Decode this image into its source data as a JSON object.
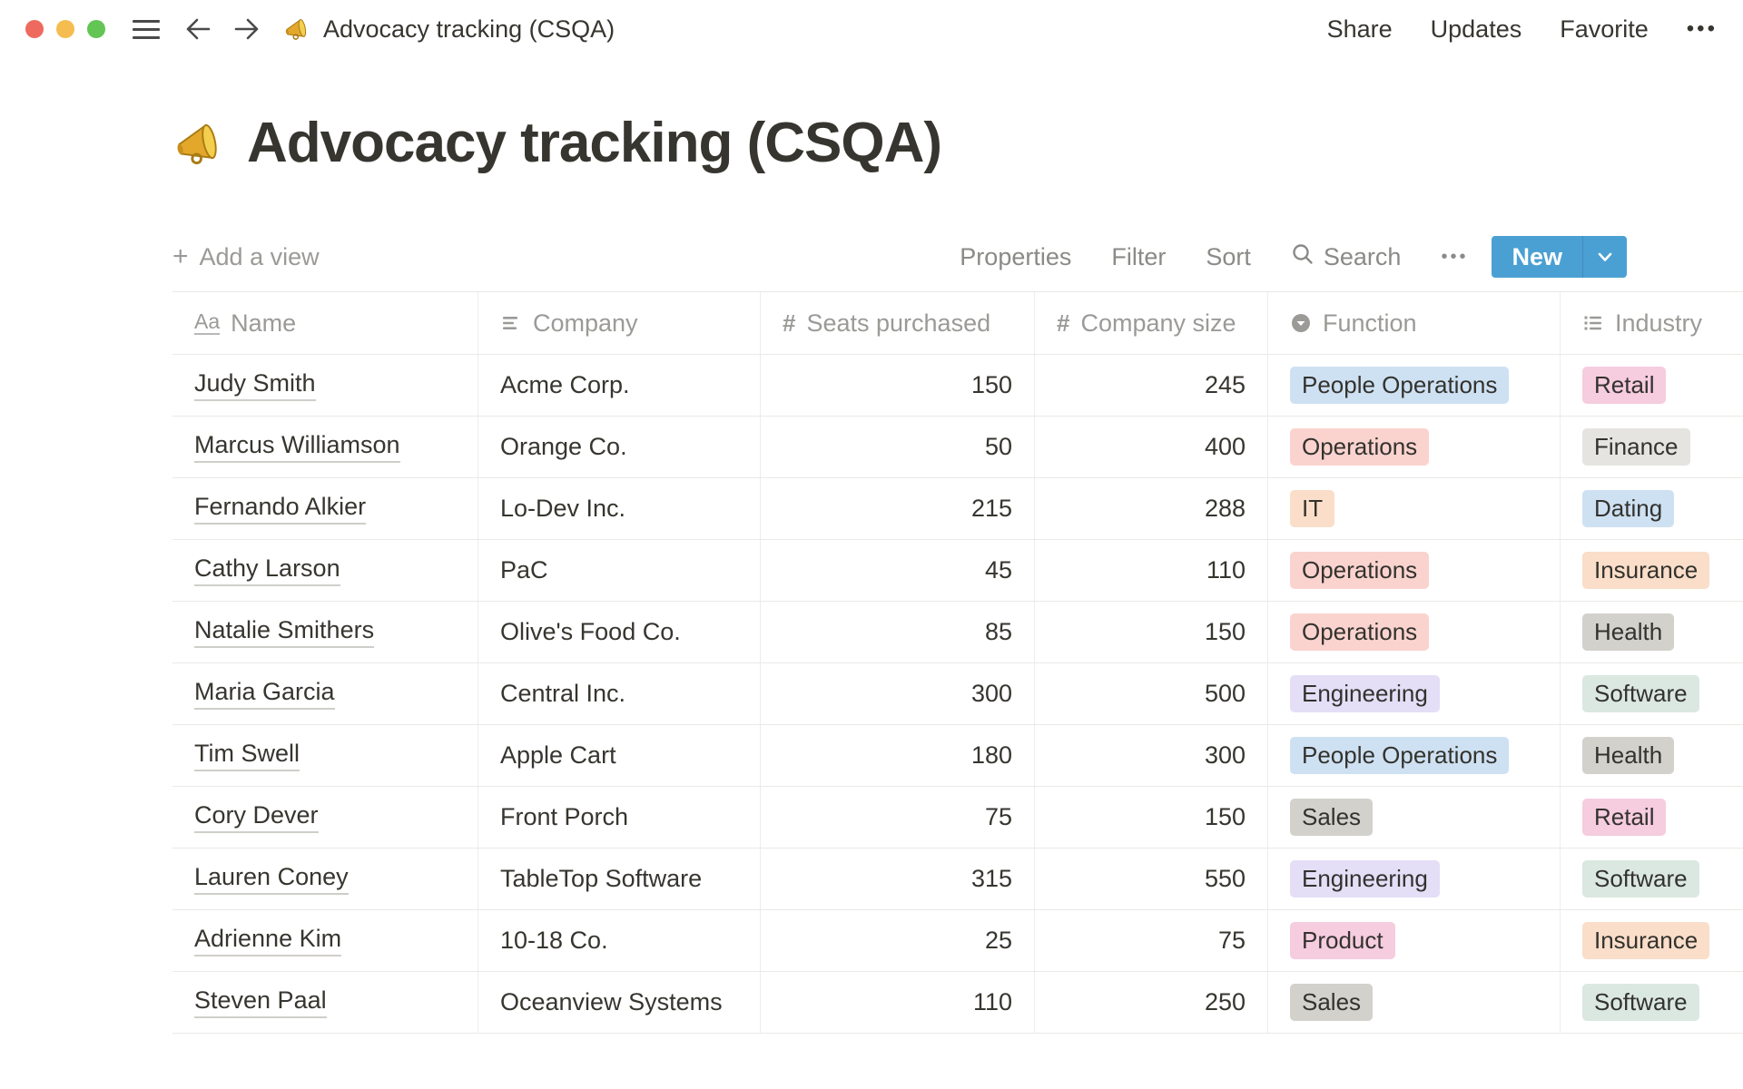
{
  "window": {
    "title": "Advocacy tracking (CSQA)",
    "actions": [
      "Share",
      "Updates",
      "Favorite"
    ],
    "more": "•••"
  },
  "page": {
    "emoji": "megaphone",
    "title": "Advocacy tracking (CSQA)"
  },
  "toolbar": {
    "add_view": "Add a view",
    "properties": "Properties",
    "filter": "Filter",
    "sort": "Sort",
    "search": "Search",
    "more": "•••",
    "new_label": "New",
    "new_color": "#4AA0D2"
  },
  "tag_colors": {
    "blue": "#CEE1F2",
    "red": "#FAD3CF",
    "orange": "#FADEC9",
    "pink": "#F6CCDF",
    "lightgray": "#E5E4E0",
    "gray": "#D3D1CC",
    "purple": "#E4DEF7",
    "green": "#DBE8E1"
  },
  "table": {
    "columns": [
      {
        "label": "Name",
        "icon": "title-icon",
        "type": "title"
      },
      {
        "label": "Company",
        "icon": "text-icon",
        "type": "text"
      },
      {
        "label": "Seats purchased",
        "icon": "number-icon",
        "type": "number"
      },
      {
        "label": "Company size",
        "icon": "number-icon",
        "type": "number"
      },
      {
        "label": "Function",
        "icon": "select-icon",
        "type": "select"
      },
      {
        "label": "Industry",
        "icon": "multiselect-icon",
        "type": "multiselect"
      }
    ],
    "rows": [
      {
        "name": "Judy Smith",
        "company": "Acme Corp.",
        "seats": "150",
        "size": "245",
        "function": {
          "label": "People Operations",
          "color": "blue"
        },
        "industry": {
          "label": "Retail",
          "color": "pink"
        }
      },
      {
        "name": "Marcus Williamson",
        "company": "Orange Co.",
        "seats": "50",
        "size": "400",
        "function": {
          "label": "Operations",
          "color": "red"
        },
        "industry": {
          "label": "Finance",
          "color": "lightgray"
        }
      },
      {
        "name": "Fernando Alkier",
        "company": "Lo-Dev Inc.",
        "seats": "215",
        "size": "288",
        "function": {
          "label": "IT",
          "color": "orange"
        },
        "industry": {
          "label": "Dating",
          "color": "blue"
        }
      },
      {
        "name": "Cathy Larson",
        "company": "PaC",
        "seats": "45",
        "size": "110",
        "function": {
          "label": "Operations",
          "color": "red"
        },
        "industry": {
          "label": "Insurance",
          "color": "orange"
        }
      },
      {
        "name": "Natalie Smithers",
        "company": "Olive's Food Co.",
        "seats": "85",
        "size": "150",
        "function": {
          "label": "Operations",
          "color": "red"
        },
        "industry": {
          "label": "Health",
          "color": "gray"
        }
      },
      {
        "name": "Maria Garcia",
        "company": "Central Inc.",
        "seats": "300",
        "size": "500",
        "function": {
          "label": "Engineering",
          "color": "purple"
        },
        "industry": {
          "label": "Software",
          "color": "green"
        }
      },
      {
        "name": "Tim Swell",
        "company": "Apple Cart",
        "seats": "180",
        "size": "300",
        "function": {
          "label": "People Operations",
          "color": "blue"
        },
        "industry": {
          "label": "Health",
          "color": "gray"
        }
      },
      {
        "name": "Cory Dever",
        "company": "Front Porch",
        "seats": "75",
        "size": "150",
        "function": {
          "label": "Sales",
          "color": "gray"
        },
        "industry": {
          "label": "Retail",
          "color": "pink"
        }
      },
      {
        "name": "Lauren Coney",
        "company": "TableTop Software",
        "seats": "315",
        "size": "550",
        "function": {
          "label": "Engineering",
          "color": "purple"
        },
        "industry": {
          "label": "Software",
          "color": "green"
        }
      },
      {
        "name": "Adrienne Kim",
        "company": "10-18 Co.",
        "seats": "25",
        "size": "75",
        "function": {
          "label": "Product",
          "color": "pink"
        },
        "industry": {
          "label": "Insurance",
          "color": "orange"
        }
      },
      {
        "name": "Steven Paal",
        "company": "Oceanview Systems",
        "seats": "110",
        "size": "250",
        "function": {
          "label": "Sales",
          "color": "gray"
        },
        "industry": {
          "label": "Software",
          "color": "green"
        }
      }
    ]
  }
}
